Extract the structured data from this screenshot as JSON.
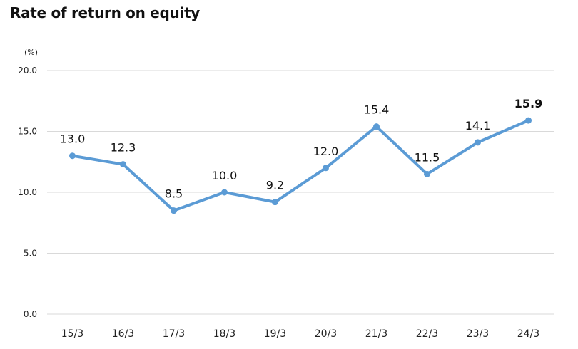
{
  "chart_data": {
    "type": "line",
    "title": "Rate of return on equity",
    "unit_label": "(%)",
    "categories": [
      "15/3",
      "16/3",
      "17/3",
      "18/3",
      "19/3",
      "20/3",
      "21/3",
      "22/3",
      "23/3",
      "24/3"
    ],
    "series": [
      {
        "values": [
          13.0,
          12.3,
          8.5,
          10.0,
          9.2,
          12.0,
          15.4,
          11.5,
          14.1,
          15.9
        ],
        "labels": [
          "13.0",
          "12.3",
          "8.5",
          "10.0",
          "9.2",
          "12.0",
          "15.4",
          "11.5",
          "14.1",
          "15.9"
        ],
        "color": "#5b9bd5"
      }
    ],
    "ylim": [
      0,
      20
    ],
    "yticks": [
      "0.0",
      "5.0",
      "10.0",
      "15.0",
      "20.0"
    ],
    "xlabel": "",
    "ylabel": "",
    "grid": true,
    "legend": "none",
    "gridline_color": "#d9d9d9",
    "emphasis": "last data label bold"
  }
}
